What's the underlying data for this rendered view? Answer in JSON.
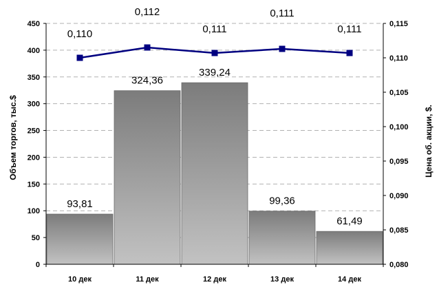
{
  "chart_data": {
    "type": "bar+line",
    "categories": [
      "10 дек",
      "11 дек",
      "12 дек",
      "13 дек",
      "14 дек"
    ],
    "series": [
      {
        "type": "bar",
        "axis": "left",
        "values": [
          93.81,
          324.36,
          339.24,
          99.36,
          61.49
        ],
        "labels": [
          "93,81",
          "324,36",
          "339,24",
          "99,36",
          "61,49"
        ]
      },
      {
        "type": "line",
        "axis": "right",
        "values": [
          0.11,
          0.1115,
          0.1107,
          0.1113,
          0.1107
        ],
        "labels": [
          "0,110",
          "0,112",
          "0,111",
          "0,111",
          "0,111"
        ],
        "color": "#000080"
      }
    ],
    "ylabel": "Объем торгов, тыс.$",
    "y2label": "Цена об. акции, $.",
    "ylim": [
      0,
      450
    ],
    "y2lim": [
      0.08,
      0.115
    ],
    "yticks": [
      "0",
      "50",
      "100",
      "150",
      "200",
      "250",
      "300",
      "350",
      "400",
      "450"
    ],
    "y2ticks": [
      "0,080",
      "0,085",
      "0,090",
      "0,095",
      "0,100",
      "0,105",
      "0,110",
      "0,115"
    ],
    "grid": true,
    "legend": "none"
  }
}
